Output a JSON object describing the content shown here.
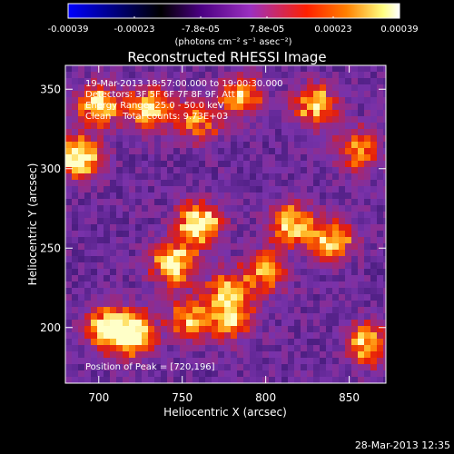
{
  "colorbar": {
    "ticks": [
      "-0.00039",
      "-0.00023",
      "-7.8e-05",
      "7.8e-05",
      "0.00023",
      "0.00039"
    ],
    "unit_label": "(photons cm⁻² s⁻¹ asec⁻²)",
    "range": [
      -0.00039,
      0.00039
    ],
    "colors": [
      "#0000ff",
      "#000000",
      "#4b0082",
      "#9b30c0",
      "#ff2000",
      "#ff8000",
      "#ffff80",
      "#ffffff"
    ]
  },
  "chart_data": {
    "type": "heatmap",
    "title": "Reconstructed RHESSI Image",
    "xlabel": "Heliocentric X (arcsec)",
    "ylabel": "Heliocentric Y (arcsec)",
    "xlim": [
      680,
      872
    ],
    "ylim": [
      165,
      365
    ],
    "xticks": [
      "700",
      "750",
      "800",
      "850"
    ],
    "yticks": [
      "200",
      "250",
      "300",
      "350"
    ],
    "xtick_values": [
      700,
      750,
      800,
      850
    ],
    "ytick_values": [
      200,
      250,
      300,
      350
    ],
    "annotations": [
      "19-Mar-2013 18:57:00.000 to 19:00:30.000",
      "Detectors: 3F 5F 6F 7F 8F 9F, Att 0",
      "Energy Range: 25.0 - 50.0 keV",
      "Clean    Total counts: 9.73E+03"
    ],
    "peak_label": "Position of Peak = [720,196]",
    "peak": [
      720,
      196
    ],
    "bright_regions": [
      {
        "x": 688,
        "y": 307,
        "intensity": 0.95
      },
      {
        "x": 700,
        "y": 340,
        "intensity": 0.75
      },
      {
        "x": 730,
        "y": 338,
        "intensity": 0.8
      },
      {
        "x": 760,
        "y": 330,
        "intensity": 0.6
      },
      {
        "x": 785,
        "y": 345,
        "intensity": 0.65
      },
      {
        "x": 830,
        "y": 340,
        "intensity": 0.75
      },
      {
        "x": 855,
        "y": 312,
        "intensity": 0.65
      },
      {
        "x": 760,
        "y": 265,
        "intensity": 0.95
      },
      {
        "x": 745,
        "y": 240,
        "intensity": 0.9
      },
      {
        "x": 778,
        "y": 222,
        "intensity": 0.7
      },
      {
        "x": 815,
        "y": 265,
        "intensity": 0.85
      },
      {
        "x": 840,
        "y": 255,
        "intensity": 0.75
      },
      {
        "x": 800,
        "y": 235,
        "intensity": 0.6
      },
      {
        "x": 720,
        "y": 196,
        "intensity": 1.0
      },
      {
        "x": 705,
        "y": 200,
        "intensity": 0.8
      },
      {
        "x": 755,
        "y": 205,
        "intensity": 0.65
      },
      {
        "x": 780,
        "y": 205,
        "intensity": 0.6
      },
      {
        "x": 862,
        "y": 190,
        "intensity": 0.75
      }
    ]
  },
  "footer": {
    "timestamp": "28-Mar-2013 12:35"
  }
}
